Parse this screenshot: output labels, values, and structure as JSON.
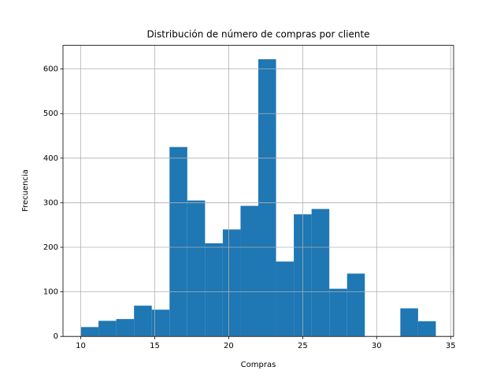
{
  "chart_data": {
    "type": "histogram",
    "title": "Distribución de número de compras por cliente",
    "xlabel": "Compras",
    "ylabel": "Frecuencia",
    "bins": [
      10,
      11.2,
      12.4,
      13.6,
      14.8,
      16,
      17.2,
      18.4,
      19.6,
      20.8,
      22,
      23.2,
      24.4,
      25.6,
      26.8,
      28,
      29.2,
      30.4,
      31.6,
      32.8,
      34
    ],
    "values": [
      21,
      35,
      39,
      69,
      60,
      425,
      305,
      209,
      240,
      293,
      622,
      168,
      274,
      286,
      107,
      141,
      0,
      0,
      63,
      34
    ],
    "color": "#1f77b4",
    "xlim": [
      8.8,
      35.2
    ],
    "xticks": [
      10,
      15,
      20,
      25,
      30,
      35
    ],
    "ylim": [
      0,
      653.1
    ],
    "yticks": [
      0,
      100,
      200,
      300,
      400,
      500,
      600
    ],
    "grid": true
  }
}
